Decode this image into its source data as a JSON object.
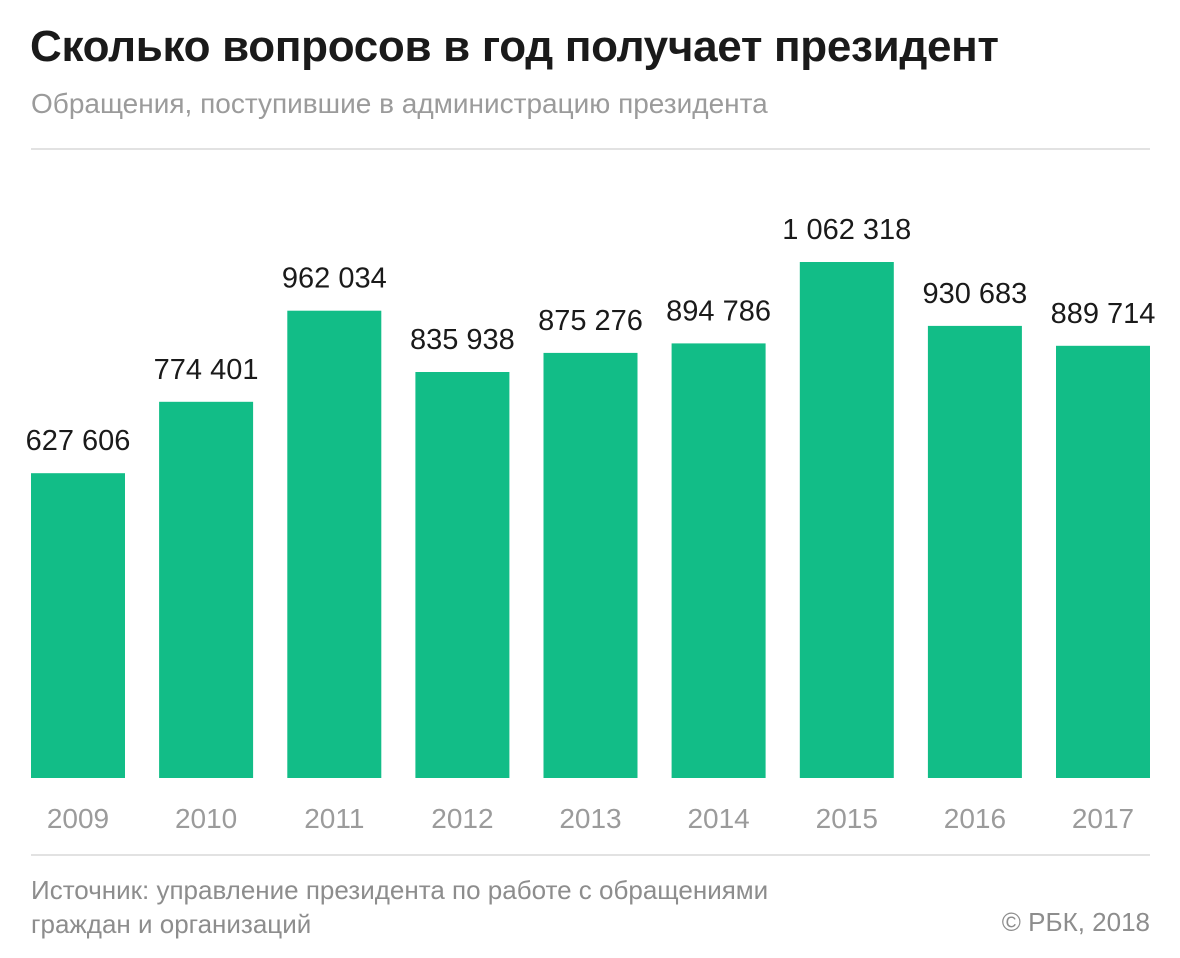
{
  "header": {
    "title": "Сколько вопросов в год получает президент",
    "subtitle": "Обращения, поступившие в администрацию президента"
  },
  "footer": {
    "source_line1": "Источник: управление президента по работе с обращениями",
    "source_line2": "граждан и организаций",
    "copyright": "© РБК, 2018"
  },
  "colors": {
    "bar": "#12bd87",
    "value_label": "#1a1a1a",
    "tick_label": "#9b9b9b"
  },
  "chart_data": {
    "type": "bar",
    "title": "Сколько вопросов в год получает президент",
    "subtitle": "Обращения, поступившие в администрацию президента",
    "xlabel": "",
    "ylabel": "",
    "categories": [
      "2009",
      "2010",
      "2011",
      "2012",
      "2013",
      "2014",
      "2015",
      "2016",
      "2017"
    ],
    "values": [
      627606,
      774401,
      962034,
      835938,
      875276,
      894786,
      1062318,
      930683,
      889714
    ],
    "value_labels": [
      "627 606",
      "774 401",
      "962 034",
      "835 938",
      "875 276",
      "894 786",
      "1 062 318",
      "930 683",
      "889 714"
    ],
    "ylim": [
      0,
      1062318
    ],
    "grid": false,
    "legend": "none"
  }
}
